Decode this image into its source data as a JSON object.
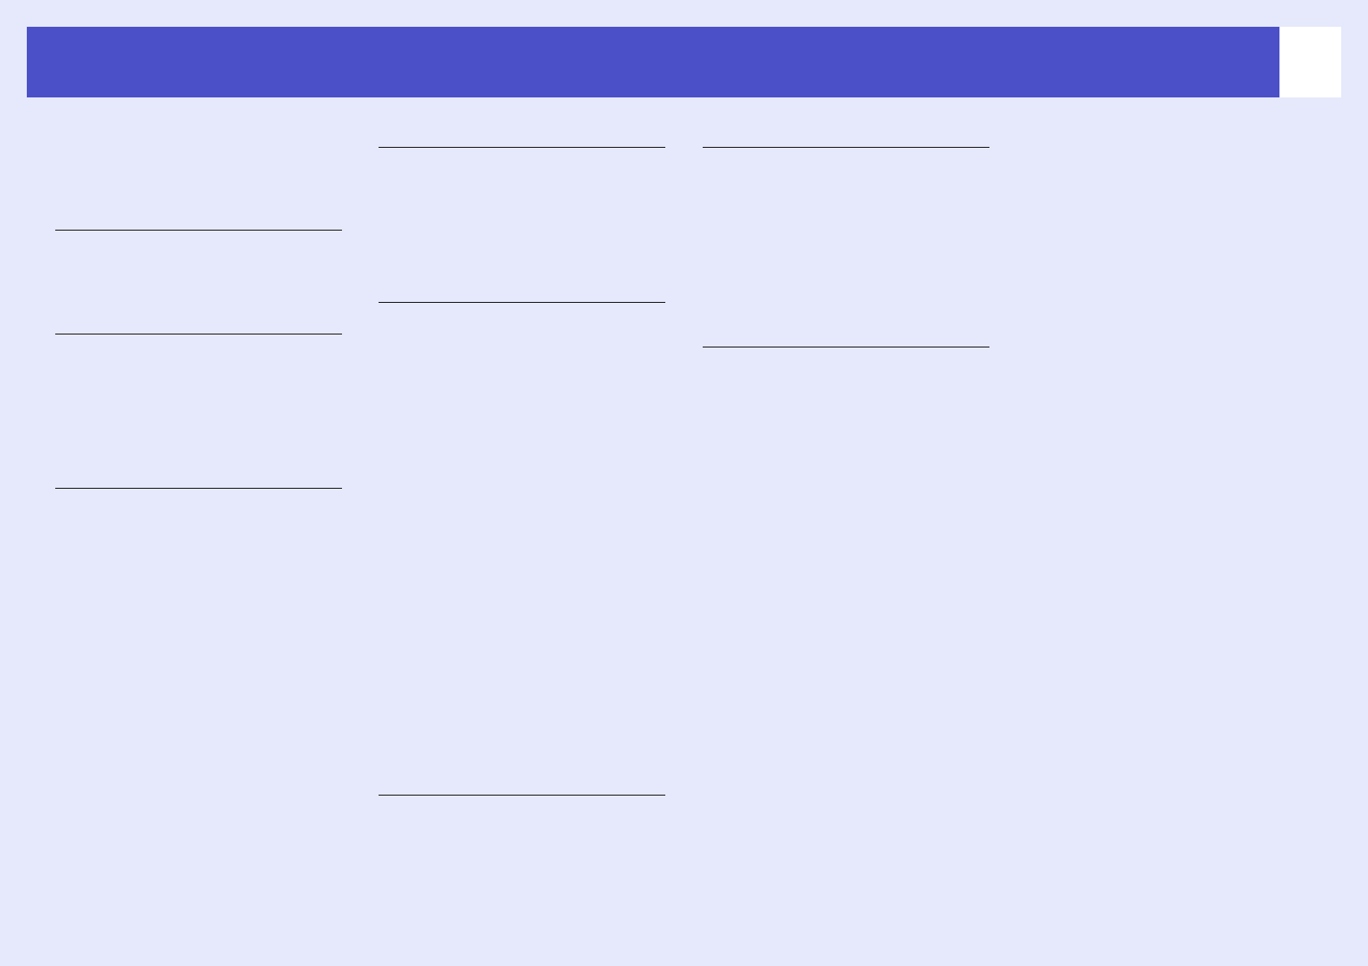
{
  "colors": {
    "background": "#e6e9fb",
    "header": "#4b4fc8",
    "page_box": "#ffffff",
    "rule": "#000000"
  }
}
